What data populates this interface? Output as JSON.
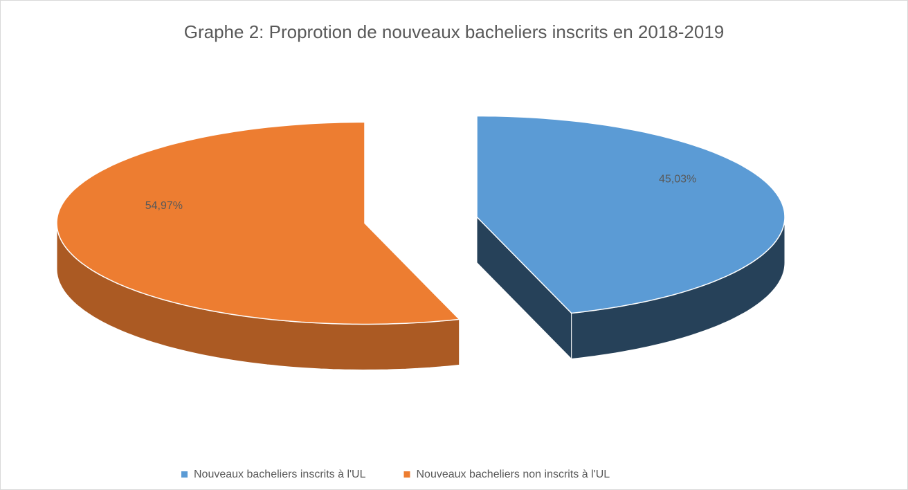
{
  "chart_data": {
    "type": "pie",
    "title": "Graphe 2: Proprotion de nouveaux bacheliers inscrits en 2018-2019",
    "categories": [
      "Nouveaux bacheliers inscrits à l'UL",
      "Nouveaux bacheliers non inscrits à l'UL"
    ],
    "values": [
      45.03,
      54.97
    ],
    "value_labels": [
      "45,03%",
      "54,97%"
    ],
    "colors": [
      "#5b9bd5",
      "#ed7d31"
    ],
    "legend": "bottom"
  }
}
